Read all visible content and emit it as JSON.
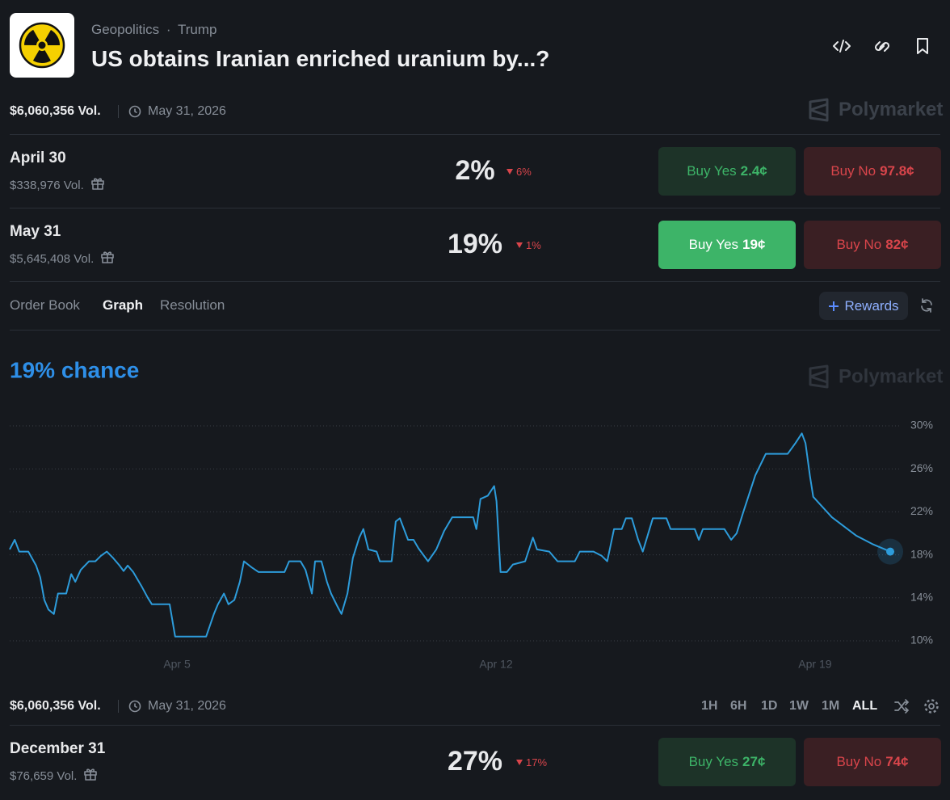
{
  "header": {
    "category": "Geopolitics",
    "tag": "Trump",
    "title": "US obtains Iranian enriched uranium by...?"
  },
  "summary": {
    "volume": "$6,060,356 Vol.",
    "date": "May 31, 2026",
    "brand": "Polymarket"
  },
  "markets": [
    {
      "date": "April 30",
      "volume": "$338,976 Vol.",
      "chance": "2%",
      "change": "6%",
      "buy_yes": "Buy Yes",
      "yes_price": "2.4¢",
      "buy_no": "Buy No",
      "no_price": "97.8¢"
    },
    {
      "date": "May 31",
      "volume": "$5,645,408 Vol.",
      "chance": "19%",
      "change": "1%",
      "buy_yes": "Buy Yes",
      "yes_price": "19¢",
      "buy_no": "Buy No",
      "no_price": "82¢"
    },
    {
      "date": "December 31",
      "volume": "$76,659 Vol.",
      "chance": "27%",
      "change": "17%",
      "buy_yes": "Buy Yes",
      "yes_price": "27¢",
      "buy_no": "Buy No",
      "no_price": "74¢"
    }
  ],
  "tabs": [
    "Order Book",
    "Graph",
    "Resolution"
  ],
  "rewards": "Rewards",
  "chart_data": {
    "type": "line",
    "title": "19% chance",
    "watermark": "Polymarket",
    "color": "#2d9cdb",
    "grid": true,
    "x": [
      1.33,
      1.44,
      1.54,
      1.74,
      1.91,
      2.0,
      2.09,
      2.18,
      2.3,
      2.39,
      2.57,
      2.68,
      2.77,
      2.89,
      3.07,
      3.21,
      3.33,
      3.46,
      3.6,
      3.74,
      3.83,
      3.92,
      4.04,
      4.22,
      4.36,
      4.45,
      4.84,
      4.96,
      5.64,
      5.81,
      5.9,
      6.03,
      6.13,
      6.26,
      6.38,
      6.47,
      6.65,
      6.79,
      7.36,
      7.46,
      7.71,
      7.82,
      7.96,
      8.03,
      8.17,
      8.29,
      8.38,
      8.52,
      8.61,
      8.74,
      8.86,
      9.0,
      9.09,
      9.2,
      9.38,
      9.45,
      9.71,
      9.8,
      9.89,
      10.07,
      10.19,
      10.3,
      10.51,
      10.69,
      10.86,
      11.04,
      11.5,
      11.57,
      11.66,
      11.82,
      11.96,
      12.01,
      12.1,
      12.24,
      12.37,
      12.64,
      12.81,
      12.9,
      13.17,
      13.35,
      13.73,
      13.84,
      14.14,
      14.32,
      14.44,
      14.59,
      14.76,
      14.85,
      14.98,
      15.12,
      15.22,
      15.44,
      15.74,
      15.83,
      16.36,
      16.45,
      16.54,
      17.01,
      17.16,
      17.28,
      17.42,
      17.69,
      17.92,
      18.4,
      18.57,
      18.71,
      18.79,
      18.89,
      18.96,
      19.37,
      19.9,
      20.26,
      20.65
    ],
    "values": [
      18.5,
      19.4,
      18.3,
      18.3,
      17.0,
      15.9,
      13.8,
      12.9,
      12.5,
      14.4,
      14.4,
      16.2,
      15.5,
      16.6,
      17.4,
      17.4,
      17.9,
      18.3,
      17.7,
      17.0,
      16.5,
      17.0,
      16.4,
      15.1,
      14.0,
      13.4,
      13.4,
      10.4,
      10.4,
      12.5,
      13.4,
      14.4,
      13.4,
      13.8,
      15.5,
      17.4,
      16.8,
      16.4,
      16.4,
      17.4,
      17.4,
      16.6,
      14.4,
      17.4,
      17.4,
      15.5,
      14.4,
      13.2,
      12.5,
      14.4,
      17.7,
      19.6,
      20.4,
      18.5,
      18.3,
      17.4,
      17.4,
      21.1,
      21.4,
      19.4,
      19.4,
      18.6,
      17.4,
      18.5,
      20.2,
      21.5,
      21.5,
      20.4,
      23.2,
      23.5,
      24.4,
      23.0,
      16.4,
      16.4,
      17.1,
      17.4,
      19.6,
      18.5,
      18.3,
      17.4,
      17.4,
      18.3,
      18.3,
      17.9,
      17.4,
      20.4,
      20.4,
      21.4,
      21.4,
      19.4,
      18.3,
      21.4,
      21.4,
      20.4,
      20.4,
      19.4,
      20.4,
      20.4,
      19.4,
      20.0,
      21.9,
      25.4,
      27.4,
      27.4,
      28.4,
      29.3,
      28.4,
      25.3,
      23.4,
      21.5,
      19.8,
      19.0,
      18.3
    ],
    "xlim": [
      1.33,
      20.88
    ],
    "ylim": [
      10,
      30
    ],
    "xticks": [
      {
        "value": 5,
        "label": "Apr 5"
      },
      {
        "value": 12,
        "label": "Apr 12"
      },
      {
        "value": 19,
        "label": "Apr 19"
      }
    ],
    "yticks": [
      {
        "value": 10,
        "label": "10%"
      },
      {
        "value": 14,
        "label": "14%"
      },
      {
        "value": 18,
        "label": "18%"
      },
      {
        "value": 22,
        "label": "22%"
      },
      {
        "value": 26,
        "label": "26%"
      },
      {
        "value": 30,
        "label": "30%"
      }
    ]
  },
  "footer": {
    "volume": "$6,060,356 Vol.",
    "date": "May 31, 2026",
    "ranges": [
      "1H",
      "6H",
      "1D",
      "1W",
      "1M",
      "ALL"
    ]
  }
}
